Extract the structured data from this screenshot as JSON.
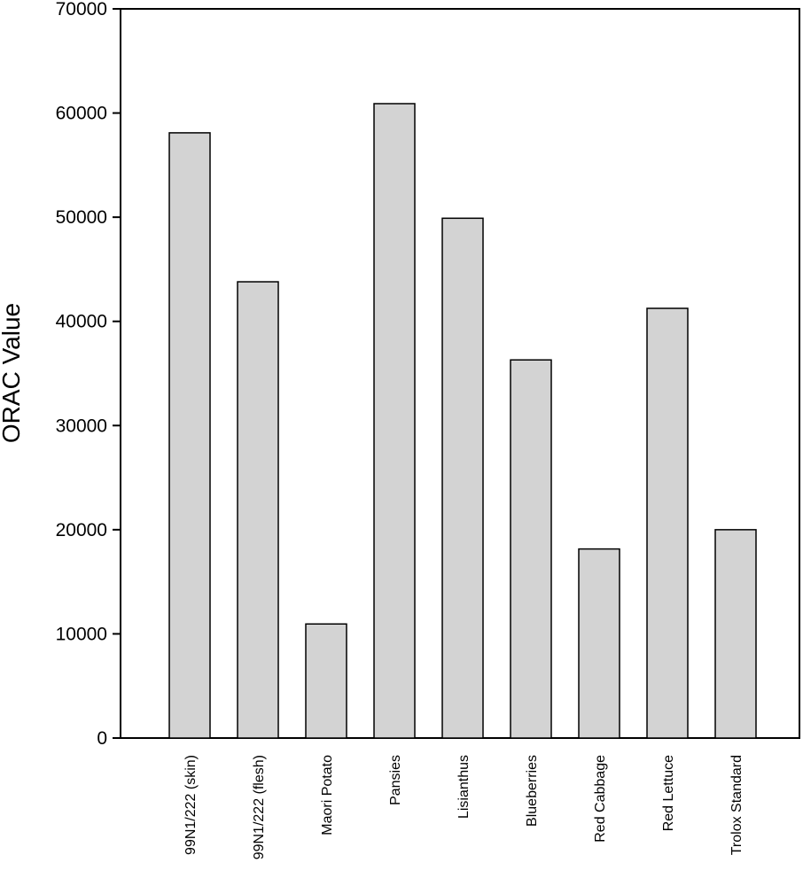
{
  "chart_data": {
    "type": "bar",
    "title": "",
    "xlabel": "",
    "ylabel": "ORAC Value",
    "ylim": [
      0,
      70000
    ],
    "yticks": [
      0,
      10000,
      20000,
      30000,
      40000,
      50000,
      60000,
      70000
    ],
    "grid": false,
    "categories": [
      "99N1/222 (skin)",
      "99N1/222 (flesh)",
      "Maori Potato",
      "Pansies",
      "Lisianthus",
      "Blueberries",
      "Red Cabbage",
      "Red Lettuce",
      "Trolox Standard"
    ],
    "values": [
      58100,
      43800,
      10950,
      60900,
      49900,
      36300,
      18150,
      41250,
      20000
    ],
    "colors": {
      "bar_fill": "#d3d3d3",
      "bar_stroke": "#000000",
      "axis": "#000000"
    }
  }
}
